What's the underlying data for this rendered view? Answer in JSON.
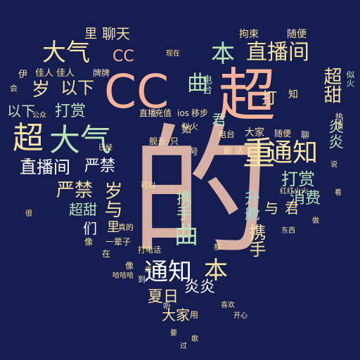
{
  "colors": {
    "background": "#161d51",
    "heart": "#1b2458",
    "palette": [
      "#f5c9a6",
      "#d7b0a3",
      "#b7e3b6",
      "#f7e3a0",
      "#9ed7d3",
      "#e7f5c2",
      "#ffffff",
      "#f6b39a"
    ]
  },
  "words": [
    {
      "text": "的",
      "color": "#d7b0a3"
    },
    {
      "text": "CC",
      "color": "#f6b39a"
    },
    {
      "text": "超",
      "color": "#f6b39a"
    },
    {
      "text": "大气",
      "color": "#b7e3b6"
    },
    {
      "text": "大气",
      "color": "#f7e3a0"
    },
    {
      "text": "超",
      "color": "#f7e3a0"
    },
    {
      "text": "直播间",
      "color": "#f7e3a0"
    },
    {
      "text": "直播间",
      "color": "#ffffff"
    },
    {
      "text": "本",
      "color": "#b7e3b6"
    },
    {
      "text": "本",
      "color": "#f7e3a0"
    },
    {
      "text": "通知",
      "color": "#f7e3a0"
    },
    {
      "text": "通知",
      "color": "#ffffff"
    },
    {
      "text": "重",
      "color": "#f7e3a0"
    },
    {
      "text": "岁",
      "color": "#f7e3a0"
    },
    {
      "text": "岁与",
      "color": "#f7e3a0"
    },
    {
      "text": "以下",
      "color": "#f7e3a0"
    },
    {
      "text": "以下",
      "color": "#b7e3b6"
    },
    {
      "text": "打赏",
      "color": "#b7e3b6"
    },
    {
      "text": "打赏",
      "color": "#b7e3b6"
    },
    {
      "text": "严禁",
      "color": "#ffffff"
    },
    {
      "text": "严禁",
      "color": "#f7e3a0"
    },
    {
      "text": "超甜",
      "color": "#f7e3a0"
    },
    {
      "text": "超甜",
      "color": "#b7e3b6"
    },
    {
      "text": "消费",
      "color": "#b7e3b6"
    },
    {
      "text": "聊天",
      "color": "#f7e3a0"
    },
    {
      "text": "CC",
      "color": "#f6b39a"
    },
    {
      "text": "曲",
      "color": "#b7e3b6"
    },
    {
      "text": "曲",
      "color": "#b7e3b6"
    },
    {
      "text": "携手",
      "color": "#b7e3b6"
    },
    {
      "text": "携手",
      "color": "#f7e3a0"
    },
    {
      "text": "炎炎",
      "color": "#ffffff"
    },
    {
      "text": "炎炎",
      "color": "#b7e3b6"
    },
    {
      "text": "夏日",
      "color": "#f7e3a0"
    },
    {
      "text": "大家",
      "color": "#f7e3a0"
    },
    {
      "text": "大家",
      "color": "#f7e3a0"
    },
    {
      "text": "君",
      "color": "#b7e3b6"
    },
    {
      "text": "君",
      "color": "#f7e3a0"
    },
    {
      "text": "打",
      "color": "#f7e3a0"
    },
    {
      "text": "升舱",
      "color": "#9ed7d3"
    },
    {
      "text": "与",
      "color": "#f7e3a0"
    },
    {
      "text": "里",
      "color": "#f7e3a0"
    },
    {
      "text": "里",
      "color": "#f7e3a0"
    },
    {
      "text": "们",
      "color": "#ffffff"
    },
    {
      "text": "佳人",
      "color": "#f7e3a0"
    },
    {
      "text": "佳人",
      "color": "#f7e3a0"
    },
    {
      "text": "伊",
      "color": "#f7e3a0"
    },
    {
      "text": "牌牌",
      "color": "#f7e3a0"
    },
    {
      "text": "电台",
      "color": "#b7e3b6"
    },
    {
      "text": "电台",
      "color": "#f7e3a0"
    },
    {
      "text": "拘束",
      "color": "#f7e3a0"
    },
    {
      "text": "随便",
      "color": "#f7e3a0"
    },
    {
      "text": "随便",
      "color": "#f7e3a0"
    },
    {
      "text": "直播",
      "color": "#f7e3a0"
    },
    {
      "text": "充值",
      "color": "#f7e3a0"
    },
    {
      "text": "ios",
      "color": "#f7e3a0"
    },
    {
      "text": "移步",
      "color": "#f7e3a0"
    },
    {
      "text": "似火",
      "color": "#f7e3a0"
    },
    {
      "text": "似火",
      "color": "#b7e3b6"
    },
    {
      "text": "热情",
      "color": "#f7e3a0"
    },
    {
      "text": "知",
      "color": "#f7e3a0"
    },
    {
      "text": "用",
      "color": "#f7e3a0"
    },
    {
      "text": "能",
      "color": "#f7e3a0"
    },
    {
      "text": "话",
      "color": "#f7e3a0"
    },
    {
      "text": "如",
      "color": "#f7e3a0"
    },
    {
      "text": "一辈子",
      "color": "#f7e3a0"
    },
    {
      "text": "红红火火",
      "color": "#f7e3a0"
    },
    {
      "text": "聊",
      "color": "#f7e3a0"
    },
    {
      "text": "像",
      "color": "#f7e3a0"
    },
    {
      "text": "公众",
      "color": "#f7e3a0"
    },
    {
      "text": "像",
      "color": "#f7e3a0"
    },
    {
      "text": "哈哈哈",
      "color": "#f7e3a0"
    },
    {
      "text": "在",
      "color": "#f7e3a0"
    },
    {
      "text": "舰长",
      "color": "#f7e3a0"
    },
    {
      "text": "只",
      "color": "#f7e3a0"
    },
    {
      "text": "号",
      "color": "#f7e3a0"
    },
    {
      "text": "到",
      "color": "#f7e3a0"
    },
    {
      "text": "真的",
      "color": "#f7e3a0"
    },
    {
      "text": "可以",
      "color": "#f7e3a0"
    },
    {
      "text": "听",
      "color": "#f7e3a0"
    },
    {
      "text": "打电话",
      "color": "#f7e3a0"
    },
    {
      "text": "会",
      "color": "#f7e3a0"
    },
    {
      "text": "已经",
      "color": "#f7e3a0"
    },
    {
      "text": "东西",
      "color": "#f7e3a0"
    },
    {
      "text": "来",
      "color": "#f7e3a0"
    },
    {
      "text": "那",
      "color": "#f7e3a0"
    },
    {
      "text": "现在",
      "color": "#f7e3a0"
    },
    {
      "text": "喜欢",
      "color": "#f7e3a0"
    },
    {
      "text": "开心",
      "color": "#f7e3a0"
    },
    {
      "text": "可",
      "color": "#f7e3a0"
    },
    {
      "text": "很",
      "color": "#f7e3a0"
    },
    {
      "text": "看",
      "color": "#f7e3a0"
    },
    {
      "text": "说",
      "color": "#f7e3a0"
    },
    {
      "text": "做",
      "color": "#f7e3a0"
    },
    {
      "text": "歌",
      "color": "#f7e3a0"
    },
    {
      "text": "要",
      "color": "#f7e3a0"
    },
    {
      "text": "过",
      "color": "#f7e3a0"
    }
  ]
}
